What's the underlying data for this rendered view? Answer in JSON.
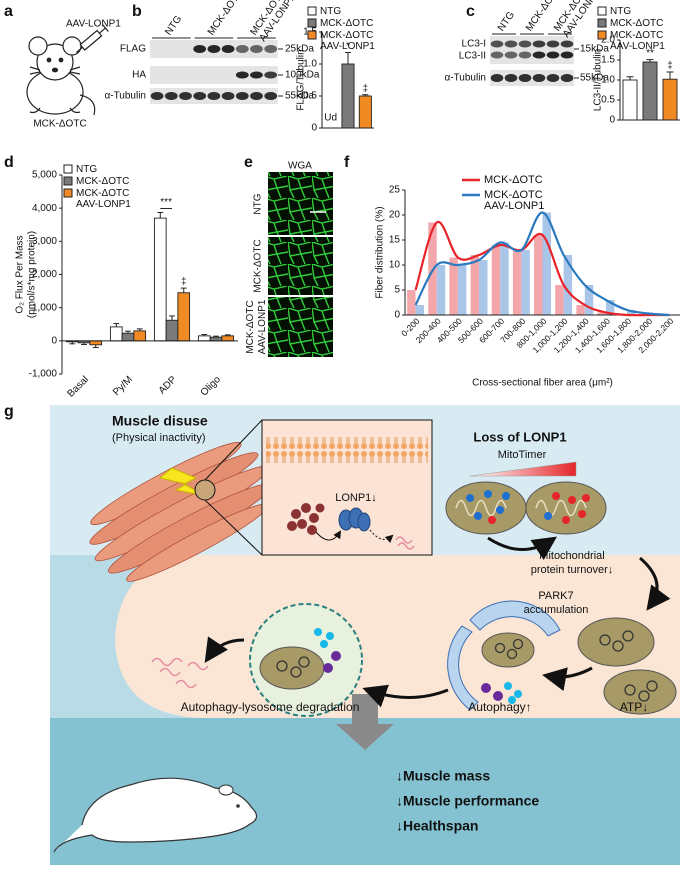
{
  "panel_labels": [
    "a",
    "b",
    "c",
    "d",
    "e",
    "f",
    "g"
  ],
  "panel_a": {
    "injection": "AAV-LONP1",
    "mouse": "MCK-ΔOTC"
  },
  "blot_b": {
    "lanes": [
      "NTG",
      "MCK-ΔOTC",
      "MCK-ΔOTC AAV-LONP1"
    ],
    "rows": [
      "FLAG",
      "HA",
      "α-Tubulin"
    ],
    "sizes": [
      "25kDa",
      "100kDa",
      "55kDa"
    ]
  },
  "blot_c": {
    "lanes": [
      "NTG",
      "MCK-ΔOTC",
      "MCK-ΔOTC AAV-LONP1"
    ],
    "rows": [
      "LC3-I",
      "LC3-II",
      "α-Tubulin"
    ],
    "sizes": [
      "15kDa",
      "55kDa"
    ]
  },
  "images_e": {
    "title": "WGA",
    "rows": [
      "NTG",
      "MCK-ΔOTC",
      "MCK-ΔOTC AAV-LONP1"
    ]
  },
  "chart_data": [
    {
      "type": "bar",
      "ylabel": "FLAG/Tubulin",
      "categories": [
        "NTG",
        "MCK-ΔOTC",
        "MCK-ΔOTC AAV-LONP1"
      ],
      "values": [
        null,
        1.0,
        0.5
      ],
      "errors": [
        null,
        0.18,
        0.02
      ],
      "colors": [
        "#ffffff",
        "#7a7a7a",
        "#f28a24"
      ],
      "bar_outline": "#222222",
      "ylim": [
        0,
        1.5
      ],
      "yticks": [
        0,
        0.5,
        {
          "value": 1,
          "label": "1.0"
        },
        {
          "value": 1.5,
          "label": "1.5"
        }
      ],
      "annotations": [
        {
          "text": "Ud",
          "category": 0
        },
        {
          "text": "*",
          "category": 1
        },
        {
          "text": "‡",
          "category": 2
        }
      ]
    },
    {
      "type": "bar",
      "ylabel": "LC3-II/Tubulin",
      "categories": [
        "NTG",
        "MCK-ΔOTC",
        "MCK-ΔOTC AAV-LONP1"
      ],
      "values": [
        1.0,
        1.45,
        1.02
      ],
      "errors": [
        0.08,
        0.06,
        0.18
      ],
      "colors": [
        "#ffffff",
        "#7a7a7a",
        "#f28a24"
      ],
      "bar_outline": "#222222",
      "ylim": [
        0,
        2
      ],
      "yticks": [
        0,
        0.5,
        {
          "value": 1,
          "label": "1.0"
        },
        1.5,
        {
          "value": 2,
          "label": "2.0"
        }
      ],
      "annotations": [
        {
          "text": "**",
          "category": 1
        },
        {
          "text": "‡",
          "category": 2
        }
      ]
    },
    {
      "type": "bar",
      "ylabel": [
        "O₂ Flux Per Mass",
        "(pmol/s*mg protein)"
      ],
      "categories": [
        "Basal",
        "Py/M",
        "ADP",
        "Oligo"
      ],
      "series": [
        {
          "name": "NTG",
          "color": "#ffffff",
          "values": [
            -30,
            420,
            3700,
            150
          ],
          "errors": [
            60,
            100,
            170,
            40
          ]
        },
        {
          "name": "MCK-ΔOTC",
          "color": "#7a7a7a",
          "values": [
            -60,
            230,
            620,
            110
          ],
          "errors": [
            50,
            60,
            130,
            30
          ]
        },
        {
          "name": "MCK-ΔOTC AAV-LONP1",
          "color": "#f28a24",
          "values": [
            -120,
            300,
            1450,
            150
          ],
          "errors": [
            80,
            60,
            140,
            30
          ]
        }
      ],
      "bar_outline": "#222222",
      "ylim": [
        -1000,
        5000
      ],
      "yticks": [
        {
          "value": -1000,
          "label": "-1,000"
        },
        0,
        {
          "value": 1000,
          "label": "1,000"
        },
        {
          "value": 2000,
          "label": "2,000"
        },
        {
          "value": 3000,
          "label": "3,000"
        },
        {
          "value": 4000,
          "label": "4,000"
        },
        {
          "value": 5000,
          "label": "5,000"
        }
      ],
      "annotations": [
        {
          "text": "***",
          "category": 2,
          "series": [
            0,
            1
          ]
        },
        {
          "text": "‡",
          "category": 2,
          "series": [
            2
          ]
        }
      ]
    },
    {
      "type": "bar",
      "ylabel": "Fiber distribution (%)",
      "xlabel": "Cross-sectional fiber area (μm²)",
      "categories": [
        "0-200",
        "200-400",
        "400-500",
        "500-600",
        "600-700",
        "700-800",
        "800-1,000",
        "1,000-1,200",
        "1,200-1,400",
        "1,400-1,600",
        "1,600-1,800",
        "1,800-2,000",
        "2,000-2,200"
      ],
      "series": [
        {
          "name": "MCK-ΔOTC",
          "color": "#e8242a",
          "bar_color": "#f4a7ab",
          "values": [
            5,
            18.5,
            11.5,
            12,
            14,
            13,
            16,
            6,
            2,
            0.5,
            0,
            0,
            0
          ]
        },
        {
          "name": "MCK-ΔOTC AAV-LONP1",
          "color": "#2a7ac0",
          "bar_color": "#a9c5e8",
          "values": [
            2,
            10,
            10,
            11,
            14.5,
            13,
            20.5,
            12,
            6,
            3,
            1,
            0.3,
            0
          ]
        }
      ],
      "smooth_lines": true,
      "ylim": [
        0,
        25
      ],
      "yticks": [
        0,
        5,
        10,
        15,
        20,
        25
      ]
    }
  ],
  "diagram": {
    "title": "Muscle disuse",
    "subtitle": "(Physical inactivity)",
    "loss": "Loss of LONP1",
    "mitotimer": "MitoTimer",
    "lonp1": "LONP1↓",
    "turnover": [
      "Mitochondrial",
      "protein turnover↓"
    ],
    "park7": [
      "PARK7",
      "accumulation"
    ],
    "degradation": "Autophagy-lysosome degradation",
    "autophagy": "Autophagy↑",
    "atp": "ATP↓",
    "outcomes": [
      "↓Muscle mass",
      "↓Muscle performance",
      "↓Healthspan"
    ]
  }
}
